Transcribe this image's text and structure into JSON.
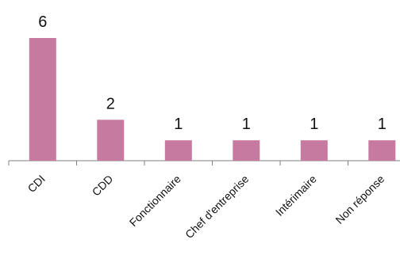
{
  "chart_data": {
    "type": "bar",
    "categories": [
      "CDI",
      "CDD",
      "Fonctionnaire",
      "Chef d'entreprise",
      "Intérimaire",
      "Non réponse"
    ],
    "values": [
      6,
      2,
      1,
      1,
      1,
      1
    ],
    "data_labels": [
      "6",
      "2",
      "1",
      "1",
      "1",
      "1"
    ],
    "title": "",
    "xlabel": "",
    "ylabel": "",
    "ylim": [
      0,
      6
    ],
    "grid": false,
    "legend": "none",
    "bar_color": "#c77aa0",
    "axis_color": "#808080"
  }
}
